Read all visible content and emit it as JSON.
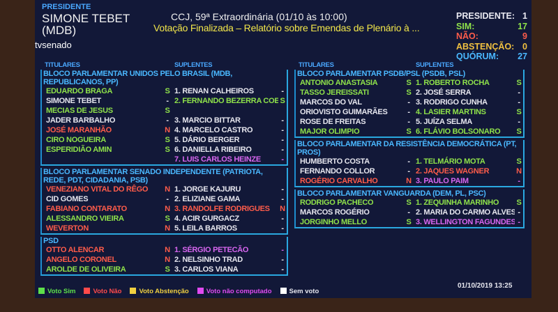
{
  "president": {
    "label": "PRESIDENTE",
    "name": "SIMONE TEBET",
    "party": "(MDB)"
  },
  "logo": "tvsenado",
  "session": {
    "title": "CCJ, 59ª Extraordinária (01/10 às 10:00)",
    "subtitle": "Votação Finalizada – Relatório sobre Emendas de Plenário à ..."
  },
  "tally": [
    {
      "label": "PRESIDENTE:",
      "value": "1",
      "color": "#e8e8f0"
    },
    {
      "label": "SIM:",
      "value": "17",
      "color": "#8fe24a"
    },
    {
      "label": "NÃO:",
      "value": "9",
      "color": "#ff5c4a"
    },
    {
      "label": "ABSTENÇÃO:",
      "value": "0",
      "color": "#f0c040"
    },
    {
      "label": "QUÓRUM:",
      "value": "27",
      "color": "#4ab8ff"
    }
  ],
  "columns": {
    "titulares": "TITULARES",
    "suplentes": "SUPLENTES"
  },
  "left_blocks": [
    {
      "name": "BLOCO PARLAMENTAR UNIDOS PELO BRASIL (MDB, REPUBLICANOS, PP)",
      "rows": [
        {
          "t": "EDUARDO BRAGA",
          "tv": "S",
          "tc": "sim",
          "s": "1. RENAN CALHEIROS",
          "sv": "-",
          "sc": "none"
        },
        {
          "t": "SIMONE TEBET",
          "tv": "-",
          "tc": "none",
          "s": "2. FERNANDO BEZERRA COELHO",
          "sv": "S",
          "sc": "sim"
        },
        {
          "t": "MECIAS DE JESUS",
          "tv": "S",
          "tc": "sim",
          "s": "",
          "sv": "",
          "sc": "none"
        },
        {
          "t": "JADER BARBALHO",
          "tv": "-",
          "tc": "none",
          "s": "3. MARCIO BITTAR",
          "sv": "-",
          "sc": "none"
        },
        {
          "t": "JOSÉ MARANHÃO",
          "tv": "N",
          "tc": "nao",
          "s": "4. MARCELO CASTRO",
          "sv": "-",
          "sc": "none"
        },
        {
          "t": "CIRO NOGUEIRA",
          "tv": "S",
          "tc": "sim",
          "s": "5. DÁRIO BERGER",
          "sv": "-",
          "sc": "none"
        },
        {
          "t": "ESPERIDIÃO AMIN",
          "tv": "S",
          "tc": "sim",
          "s": "6. DANIELLA RIBEIRO",
          "sv": "-",
          "sc": "none"
        },
        {
          "t": "",
          "tv": "",
          "tc": "none",
          "s": "7. LUIS CARLOS HEINZE",
          "sv": "-",
          "sc": "nc"
        }
      ]
    },
    {
      "name": "BLOCO PARLAMENTAR SENADO INDEPENDENTE (PATRIOTA, REDE, PDT, CIDADANIA, PSB)",
      "rows": [
        {
          "t": "VENEZIANO VITAL DO RÊGO",
          "tv": "N",
          "tc": "nao",
          "s": "1. JORGE KAJURU",
          "sv": "-",
          "sc": "none"
        },
        {
          "t": "CID GOMES",
          "tv": "-",
          "tc": "none",
          "s": "2. ELIZIANE GAMA",
          "sv": "-",
          "sc": "none"
        },
        {
          "t": "FABIANO CONTARATO",
          "tv": "N",
          "tc": "nao",
          "s": "3. RANDOLFE RODRIGUES",
          "sv": "N",
          "sc": "nao"
        },
        {
          "t": "ALESSANDRO VIEIRA",
          "tv": "S",
          "tc": "sim",
          "s": "4. ACIR GURGACZ",
          "sv": "-",
          "sc": "none"
        },
        {
          "t": "WEVERTON",
          "tv": "N",
          "tc": "nao",
          "s": "5. LEILA BARROS",
          "sv": "-",
          "sc": "none"
        }
      ]
    },
    {
      "name": "PSD",
      "rows": [
        {
          "t": "OTTO ALENCAR",
          "tv": "N",
          "tc": "nao",
          "s": "1. SÉRGIO PETECÃO",
          "sv": "-",
          "sc": "nc"
        },
        {
          "t": "ANGELO CORONEL",
          "tv": "N",
          "tc": "nao",
          "s": "2. NELSINHO TRAD",
          "sv": "-",
          "sc": "none"
        },
        {
          "t": "AROLDE DE OLIVEIRA",
          "tv": "S",
          "tc": "sim",
          "s": "3. CARLOS VIANA",
          "sv": "-",
          "sc": "none"
        }
      ]
    }
  ],
  "right_blocks": [
    {
      "name": "BLOCO PARLAMENTAR PSDB/PSL (PSDB, PSL)",
      "rows": [
        {
          "t": "ANTONIO ANASTASIA",
          "tv": "S",
          "tc": "sim",
          "s": "1. ROBERTO ROCHA",
          "sv": "S",
          "sc": "sim"
        },
        {
          "t": "TASSO JEREISSATI",
          "tv": "S",
          "tc": "sim",
          "s": "2. JOSÉ SERRA",
          "sv": "-",
          "sc": "none"
        },
        {
          "t": "MARCOS DO VAL",
          "tv": "-",
          "tc": "none",
          "s": "3. RODRIGO CUNHA",
          "sv": "-",
          "sc": "none"
        },
        {
          "t": "ORIOVISTO GUIMARÃES",
          "tv": "-",
          "tc": "none",
          "s": "4. LASIER MARTINS",
          "sv": "S",
          "sc": "sim"
        },
        {
          "t": "ROSE DE FREITAS",
          "tv": "-",
          "tc": "none",
          "s": "5. JUÍZA SELMA",
          "sv": "-",
          "sc": "none"
        },
        {
          "t": "MAJOR OLIMPIO",
          "tv": "S",
          "tc": "sim",
          "s": "6. FLÁVIO BOLSONARO",
          "sv": "S",
          "sc": "sim"
        }
      ]
    },
    {
      "name": "BLOCO PARLAMENTAR DA RESISTÊNCIA DEMOCRÁTICA (PT, PROS)",
      "rows": [
        {
          "t": "HUMBERTO COSTA",
          "tv": "-",
          "tc": "none",
          "s": "1. TELMÁRIO MOTA",
          "sv": "S",
          "sc": "sim"
        },
        {
          "t": "FERNANDO COLLOR",
          "tv": "-",
          "tc": "none",
          "s": "2. JAQUES WAGNER",
          "sv": "N",
          "sc": "nao"
        },
        {
          "t": "ROGÉRIO CARVALHO",
          "tv": "N",
          "tc": "nao",
          "s": "3. PAULO PAIM",
          "sv": "-",
          "sc": "nc"
        }
      ]
    },
    {
      "name": "BLOCO PARLAMENTAR VANGUARDA (DEM, PL, PSC)",
      "rows": [
        {
          "t": "RODRIGO PACHECO",
          "tv": "S",
          "tc": "sim",
          "s": "1. ZEQUINHA MARINHO",
          "sv": "S",
          "sc": "sim"
        },
        {
          "t": "MARCOS ROGÉRIO",
          "tv": "-",
          "tc": "none",
          "s": "2. MARIA DO CARMO ALVES",
          "sv": "-",
          "sc": "none"
        },
        {
          "t": "JORGINHO MELLO",
          "tv": "S",
          "tc": "sim",
          "s": "3. WELLINGTON FAGUNDES",
          "sv": "-",
          "sc": "nc"
        }
      ]
    }
  ],
  "legend": [
    {
      "label": "Voto Sim",
      "color": "#5ee04a"
    },
    {
      "label": "Voto Não",
      "color": "#ff4a4a"
    },
    {
      "label": "Voto Abstenção",
      "color": "#f0d040"
    },
    {
      "label": "Voto não computado",
      "color": "#e04af0"
    },
    {
      "label": "Sem voto",
      "color": "#ffffff"
    }
  ],
  "timestamp": "01/10/2019 13:25"
}
